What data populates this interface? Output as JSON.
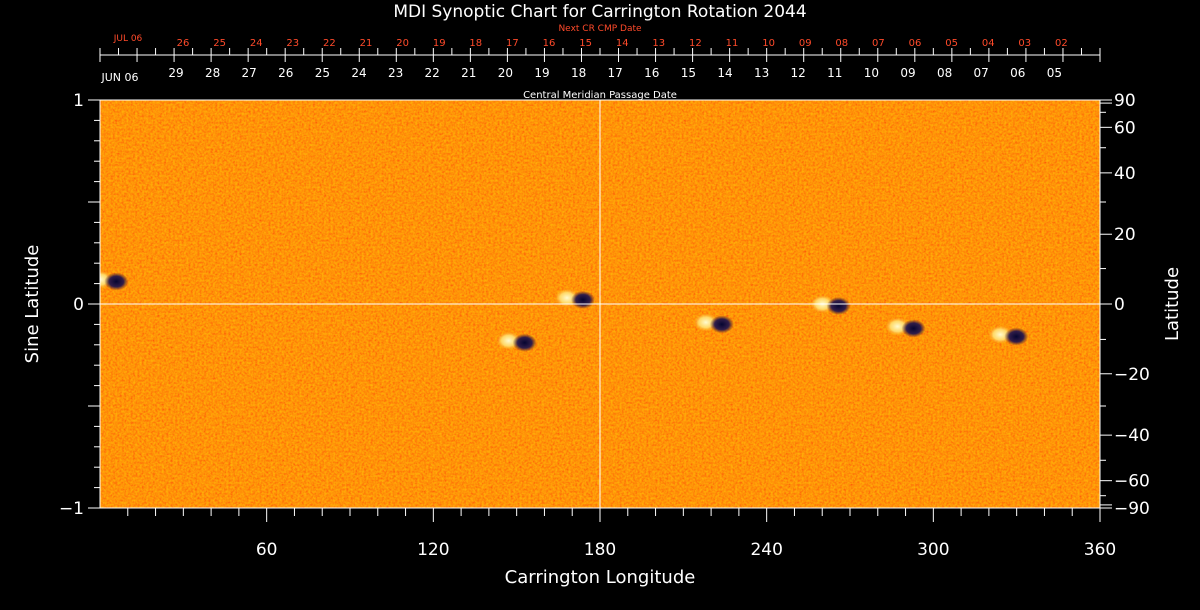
{
  "chart_data": {
    "type": "heatmap",
    "title": "MDI Synoptic Chart for Carrington Rotation 2044",
    "xlabel": "Carrington Longitude",
    "ylabel_left": "Sine Latitude",
    "ylabel_right": "Latitude",
    "xlim": [
      0,
      360
    ],
    "ylim": [
      -1,
      1
    ],
    "x_ticks": [
      60,
      120,
      180,
      240,
      300,
      360
    ],
    "y_ticks_left": [
      {
        "value": 1,
        "label": "1"
      },
      {
        "value": 0,
        "label": "0"
      },
      {
        "value": -1,
        "label": "−1"
      }
    ],
    "y_ticks_right": [
      {
        "deg": 90,
        "label": "90"
      },
      {
        "deg": 60,
        "label": "60"
      },
      {
        "deg": 40,
        "label": "40"
      },
      {
        "deg": 20,
        "label": "20"
      },
      {
        "deg": 0,
        "label": "0"
      },
      {
        "deg": -20,
        "label": "−20"
      },
      {
        "deg": -40,
        "label": "−40"
      },
      {
        "deg": -60,
        "label": "−60"
      },
      {
        "deg": -90,
        "label": "−90"
      }
    ],
    "cmp_axis": {
      "title": "Central Meridian Passage Date",
      "start_label": "JUN 06",
      "dates": [
        "29",
        "28",
        "27",
        "26",
        "25",
        "24",
        "23",
        "22",
        "21",
        "20",
        "19",
        "18",
        "17",
        "16",
        "15",
        "14",
        "13",
        "12",
        "11",
        "10",
        "09",
        "08",
        "07",
        "06",
        "05"
      ]
    },
    "next_cr_axis": {
      "title": "Next CR CMP Date",
      "start_label": "JUL 06",
      "dates": [
        "26",
        "25",
        "24",
        "23",
        "22",
        "21",
        "20",
        "19",
        "18",
        "17",
        "16",
        "15",
        "14",
        "13",
        "12",
        "11",
        "10",
        "09",
        "08",
        "07",
        "06",
        "05",
        "04",
        "03",
        "02"
      ]
    },
    "reference_lines": {
      "x": 180,
      "y": 0
    },
    "active_regions": [
      {
        "lon": 3,
        "sinlat": 0.12
      },
      {
        "lon": 150,
        "sinlat": -0.18
      },
      {
        "lon": 171,
        "sinlat": 0.03
      },
      {
        "lon": 221,
        "sinlat": -0.09
      },
      {
        "lon": 263,
        "sinlat": 0.0
      },
      {
        "lon": 290,
        "sinlat": -0.11
      },
      {
        "lon": 327,
        "sinlat": -0.15
      }
    ],
    "colors": {
      "background_field": "#ff5a12",
      "positive_polarity": "#fff6b0",
      "negative_polarity": "#0a0a40",
      "axis": "#ffffff",
      "next_cr_text": "#ff4a2a"
    }
  }
}
